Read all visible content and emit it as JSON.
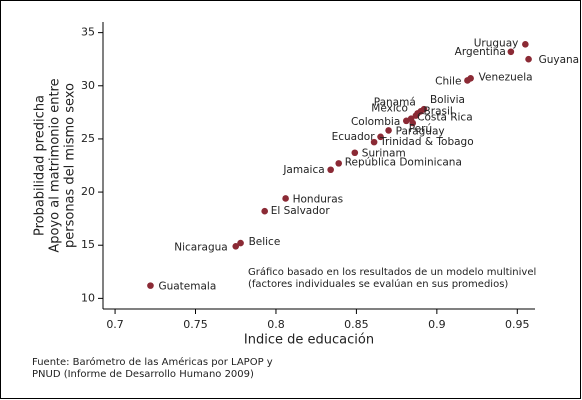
{
  "chart_data": {
    "type": "scatter",
    "y_label_lines": [
      "Probabilidad predicha",
      "Apoyo al matrimonio entre",
      "personas del mismo sexo"
    ],
    "x_label": "Indice de educación",
    "annotation_lines": [
      "Gráfico basado en los resultados de un modelo multinivel",
      "(factores individuales se evalúan en sus promedios)"
    ],
    "footnote_lines": [
      "Fuente: Barómetro de las Américas por LAPOP y",
      "PNUD (Informe de Desarrollo Humano 2009)"
    ],
    "color": "#8b2a35",
    "xlim": [
      0.6925,
      0.961
    ],
    "ylim": [
      9,
      36
    ],
    "xticks": [
      0.7,
      0.75,
      0.8,
      0.85,
      0.9,
      0.95
    ],
    "yticks": [
      10,
      15,
      20,
      25,
      30,
      35
    ],
    "labels": [
      "Uruguay",
      "Argentina",
      "Guyana",
      "Chile",
      "Venezuela",
      "Bolivia",
      "Panamá",
      "México",
      "Brasil",
      "Colombia",
      "Costa Rica",
      "Perú",
      "Paraguay",
      "Ecuador",
      "Trinidad & Tobago",
      "Surinam",
      "República Dominicana",
      "Jamaica",
      "Honduras",
      "El Salvador",
      "Belice",
      "Nicaragua",
      "Guatemala"
    ],
    "x": [
      0.955,
      0.946,
      0.957,
      0.919,
      0.921,
      0.892,
      0.89,
      0.887,
      0.888,
      0.881,
      0.884,
      0.885,
      0.87,
      0.865,
      0.861,
      0.849,
      0.839,
      0.834,
      0.806,
      0.793,
      0.778,
      0.775,
      0.722
    ],
    "values": [
      33.9,
      33.2,
      32.5,
      30.5,
      30.7,
      27.8,
      27.6,
      27.2,
      27.4,
      26.7,
      26.9,
      26.5,
      25.8,
      25.2,
      24.7,
      23.7,
      22.7,
      22.1,
      19.4,
      18.2,
      15.2,
      14.9,
      11.2
    ]
  }
}
